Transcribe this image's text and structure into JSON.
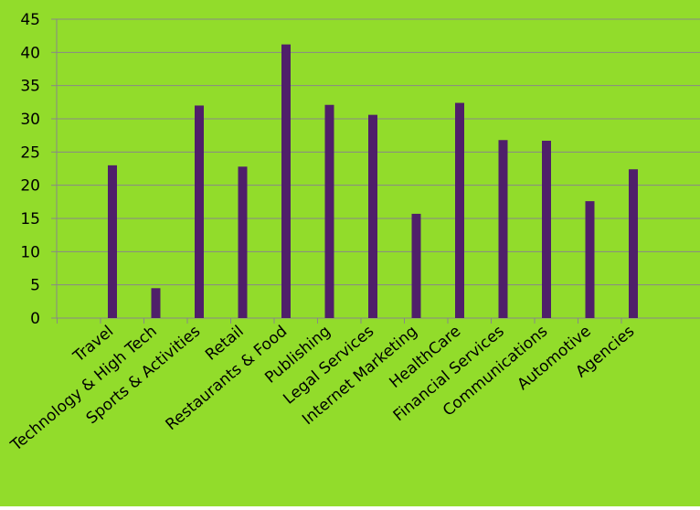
{
  "background_color": "#92dc2b",
  "bar_color": "#4f1f6a",
  "grid_color": "#888888",
  "chart_data": {
    "type": "bar",
    "title": "",
    "xlabel": "",
    "ylabel": "",
    "ylim": [
      0,
      45
    ],
    "y_ticks": [
      0,
      5,
      10,
      15,
      20,
      25,
      30,
      35,
      40,
      45
    ],
    "grid": true,
    "legend": "none",
    "categories": [
      "Travel",
      "Technology & High Tech",
      "Sports & Activities",
      "Retail",
      "Restaurants & Food",
      "Publishing",
      "Legal Services",
      "Internet Marketing",
      "HealthCare",
      "Financial Services",
      "Communications",
      "Automotive",
      "Agencies"
    ],
    "values": [
      23.0,
      4.5,
      32.0,
      22.8,
      41.2,
      32.1,
      30.6,
      15.7,
      32.4,
      26.8,
      26.7,
      17.6,
      22.4
    ]
  }
}
